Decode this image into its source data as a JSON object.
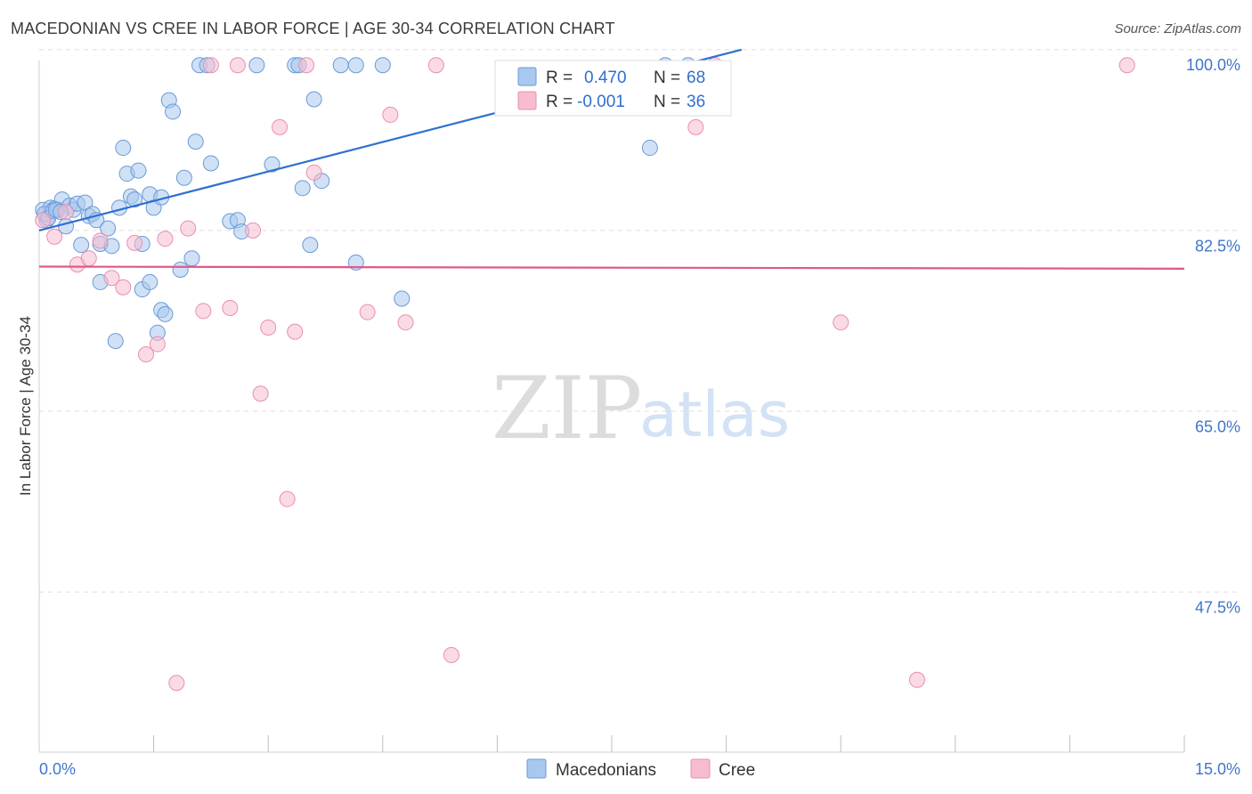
{
  "title": "MACEDONIAN VS CREE IN LABOR FORCE | AGE 30-34 CORRELATION CHART",
  "source": "Source: ZipAtlas.com",
  "watermark": {
    "part1": "ZIP",
    "part2": "atlas"
  },
  "colors": {
    "blue_fill": "#a9c8ef",
    "blue_stroke": "#6a9ad8",
    "blue_line": "#2f6fd0",
    "pink_fill": "#f6bdd0",
    "pink_stroke": "#e88fb0",
    "pink_line": "#e0588a",
    "axis_text": "#3f76c8",
    "grid": "#dddddd"
  },
  "legend": {
    "rows": [
      {
        "r_label": "R =",
        "r_value": "0.470",
        "n_label": "N =",
        "n_value": "68"
      },
      {
        "r_label": "R =",
        "r_value": "-0.001",
        "n_label": "N =",
        "n_value": "36"
      }
    ]
  },
  "bottom_legend": [
    "Macedonians",
    "Cree"
  ],
  "chart_data": {
    "type": "scatter",
    "title": "MACEDONIAN VS CREE IN LABOR FORCE | AGE 30-34 CORRELATION CHART",
    "xlabel": "",
    "ylabel": "In Labor Force | Age 30-34",
    "xlim": [
      0,
      15
    ],
    "ylim": [
      33.5,
      102
    ],
    "x_tick_labels": [
      {
        "value": 0,
        "label": "0.0%"
      },
      {
        "value": 15,
        "label": "15.0%"
      }
    ],
    "y_tick_labels": [
      {
        "value": 100,
        "label": "100.0%"
      },
      {
        "value": 82.5,
        "label": "82.5%"
      },
      {
        "value": 65,
        "label": "65.0%"
      },
      {
        "value": 47.5,
        "label": "47.5%"
      }
    ],
    "y_grid": [
      101.5,
      84,
      66.5,
      49
    ],
    "x_minor_ticks": [
      1.5,
      3,
      4.5,
      6,
      7.5,
      9,
      10.5,
      12,
      13.5,
      15
    ],
    "grid": true,
    "legend_position": "bottom",
    "series": [
      {
        "name": "Macedonians",
        "r": 0.47,
        "n": 68,
        "trend": {
          "x": [
            0,
            9.2
          ],
          "y": [
            84,
            101.5
          ]
        },
        "points": [
          [
            0.05,
            86.0
          ],
          [
            0.1,
            85.0
          ],
          [
            0.15,
            86.2
          ],
          [
            0.2,
            86.1
          ],
          [
            0.25,
            86.0
          ],
          [
            0.3,
            87.0
          ],
          [
            0.35,
            84.4
          ],
          [
            0.4,
            86.4
          ],
          [
            0.45,
            86.0
          ],
          [
            0.5,
            86.6
          ],
          [
            0.55,
            82.6
          ],
          [
            0.6,
            86.7
          ],
          [
            0.65,
            85.4
          ],
          [
            0.7,
            85.6
          ],
          [
            0.75,
            85.0
          ],
          [
            0.8,
            79.0
          ],
          [
            0.8,
            82.7
          ],
          [
            0.9,
            84.2
          ],
          [
            0.95,
            82.5
          ],
          [
            1.0,
            73.3
          ],
          [
            1.05,
            86.2
          ],
          [
            1.1,
            92.0
          ],
          [
            1.15,
            89.5
          ],
          [
            1.2,
            87.3
          ],
          [
            1.25,
            87.0
          ],
          [
            1.3,
            89.8
          ],
          [
            1.35,
            78.3
          ],
          [
            1.35,
            82.7
          ],
          [
            1.45,
            87.5
          ],
          [
            1.45,
            79.0
          ],
          [
            1.5,
            86.2
          ],
          [
            1.55,
            74.1
          ],
          [
            1.6,
            87.2
          ],
          [
            1.6,
            76.3
          ],
          [
            1.65,
            75.9
          ],
          [
            1.7,
            96.6
          ],
          [
            1.75,
            95.5
          ],
          [
            1.85,
            80.2
          ],
          [
            1.9,
            89.1
          ],
          [
            2.0,
            81.3
          ],
          [
            2.05,
            92.6
          ],
          [
            2.1,
            100.0
          ],
          [
            2.2,
            100.0
          ],
          [
            2.25,
            90.5
          ],
          [
            2.5,
            84.9
          ],
          [
            2.6,
            85.0
          ],
          [
            2.65,
            83.9
          ],
          [
            2.85,
            100.0
          ],
          [
            3.05,
            90.4
          ],
          [
            3.35,
            100.0
          ],
          [
            3.4,
            100.0
          ],
          [
            3.45,
            88.1
          ],
          [
            3.55,
            82.6
          ],
          [
            3.6,
            96.7
          ],
          [
            3.7,
            88.8
          ],
          [
            3.95,
            100.0
          ],
          [
            4.15,
            100.0
          ],
          [
            4.15,
            80.9
          ],
          [
            4.5,
            100.0
          ],
          [
            4.75,
            77.4
          ],
          [
            8.0,
            92.0
          ],
          [
            8.2,
            100.0
          ],
          [
            8.5,
            100.0
          ],
          [
            0.07,
            85.6
          ],
          [
            0.12,
            85.2
          ],
          [
            0.18,
            85.9
          ],
          [
            0.22,
            86.0
          ],
          [
            0.28,
            85.8
          ]
        ]
      },
      {
        "name": "Cree",
        "r": -0.001,
        "n": 36,
        "trend": {
          "x": [
            0,
            15
          ],
          "y": [
            80.5,
            80.3
          ]
        },
        "points": [
          [
            0.05,
            85.0
          ],
          [
            0.2,
            83.4
          ],
          [
            0.35,
            85.8
          ],
          [
            0.5,
            80.7
          ],
          [
            0.65,
            81.3
          ],
          [
            0.8,
            83.0
          ],
          [
            0.95,
            79.4
          ],
          [
            1.1,
            78.5
          ],
          [
            1.25,
            82.8
          ],
          [
            1.4,
            72.0
          ],
          [
            1.55,
            73.0
          ],
          [
            1.65,
            83.2
          ],
          [
            1.8,
            40.2
          ],
          [
            1.95,
            84.2
          ],
          [
            2.15,
            76.2
          ],
          [
            2.25,
            100.0
          ],
          [
            2.5,
            76.5
          ],
          [
            2.6,
            100.0
          ],
          [
            2.8,
            84.0
          ],
          [
            2.9,
            68.2
          ],
          [
            3.0,
            74.6
          ],
          [
            3.15,
            94.0
          ],
          [
            3.25,
            58.0
          ],
          [
            3.35,
            74.2
          ],
          [
            3.5,
            100.0
          ],
          [
            3.6,
            89.6
          ],
          [
            4.3,
            76.1
          ],
          [
            4.6,
            95.2
          ],
          [
            4.8,
            75.1
          ],
          [
            5.2,
            100.0
          ],
          [
            5.4,
            42.9
          ],
          [
            8.6,
            94.0
          ],
          [
            8.85,
            100.0
          ],
          [
            10.5,
            75.1
          ],
          [
            11.5,
            40.5
          ],
          [
            14.25,
            100.0
          ]
        ]
      }
    ]
  }
}
